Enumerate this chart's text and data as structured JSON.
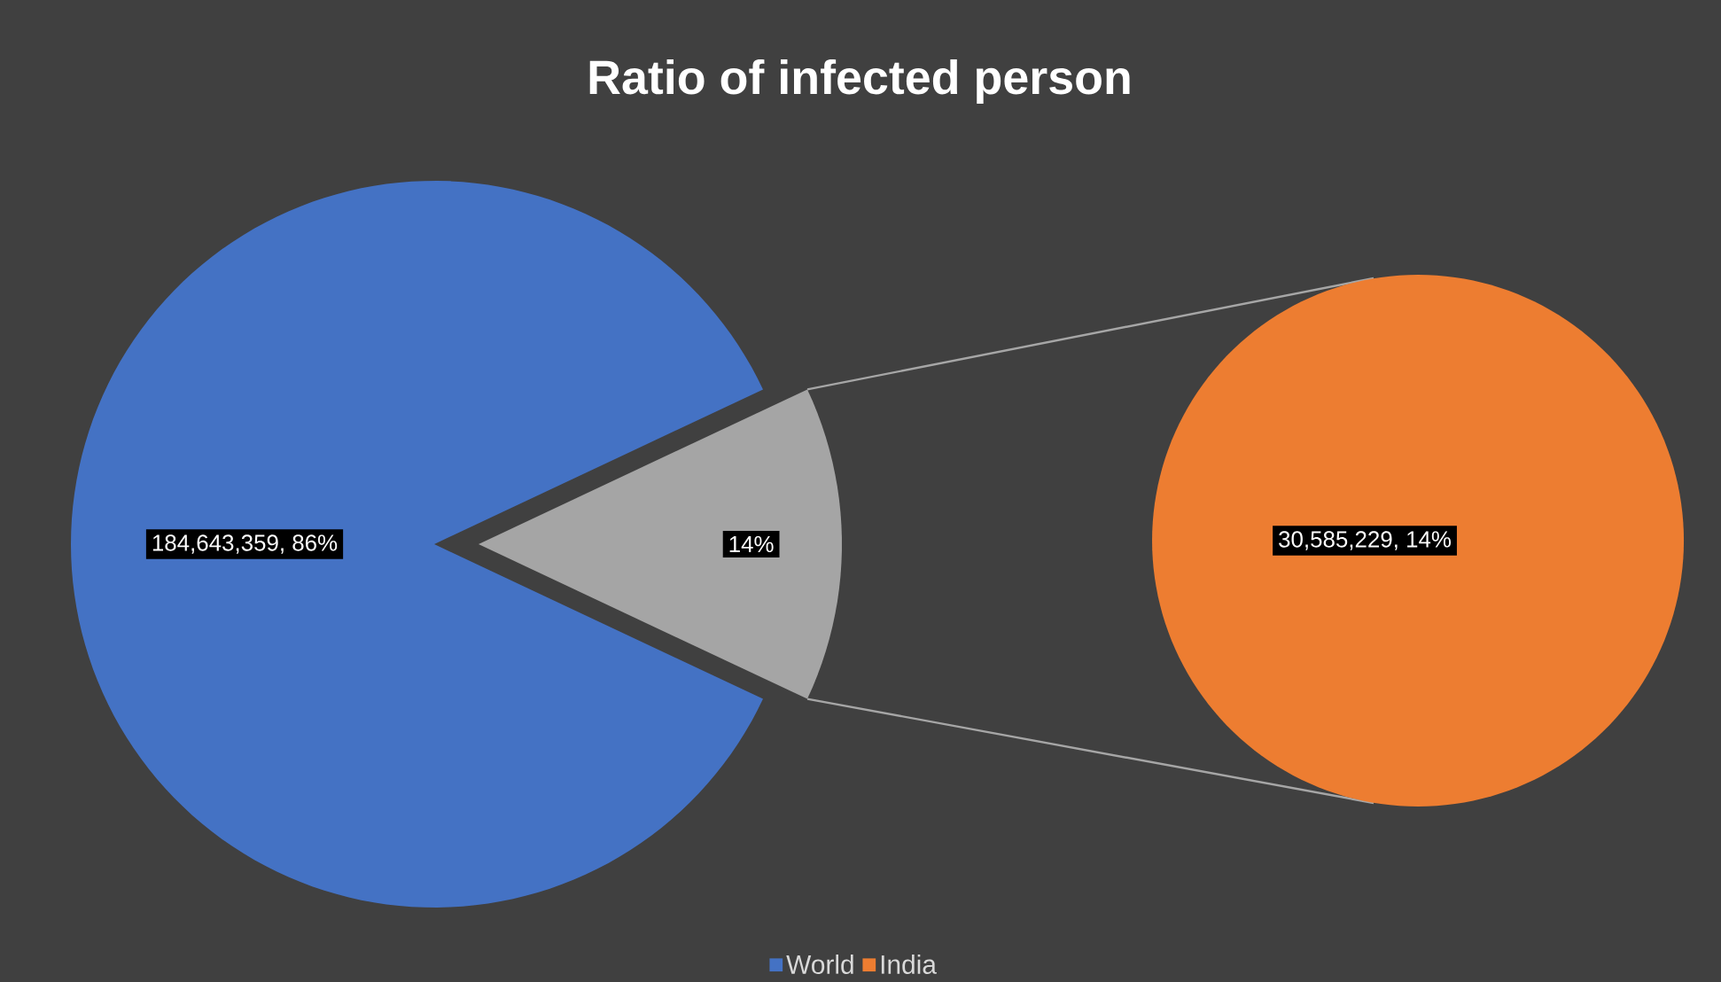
{
  "chart_data": [
    {
      "type": "pie",
      "title": "Ratio of infected person",
      "categories": [
        "World",
        null
      ],
      "values": [
        86,
        14
      ],
      "colors": [
        "#4472c4",
        "#a5a5a5"
      ],
      "value_labels": [
        "184,643,359, 86%",
        "14%"
      ],
      "legend": "bottom"
    },
    {
      "type": "pie",
      "categories": [
        "India"
      ],
      "values": [
        30585229
      ],
      "colors": [
        "#ed7d31"
      ],
      "value_labels": [
        "30,585,229, 14%"
      ],
      "legend": "bottom"
    }
  ]
}
